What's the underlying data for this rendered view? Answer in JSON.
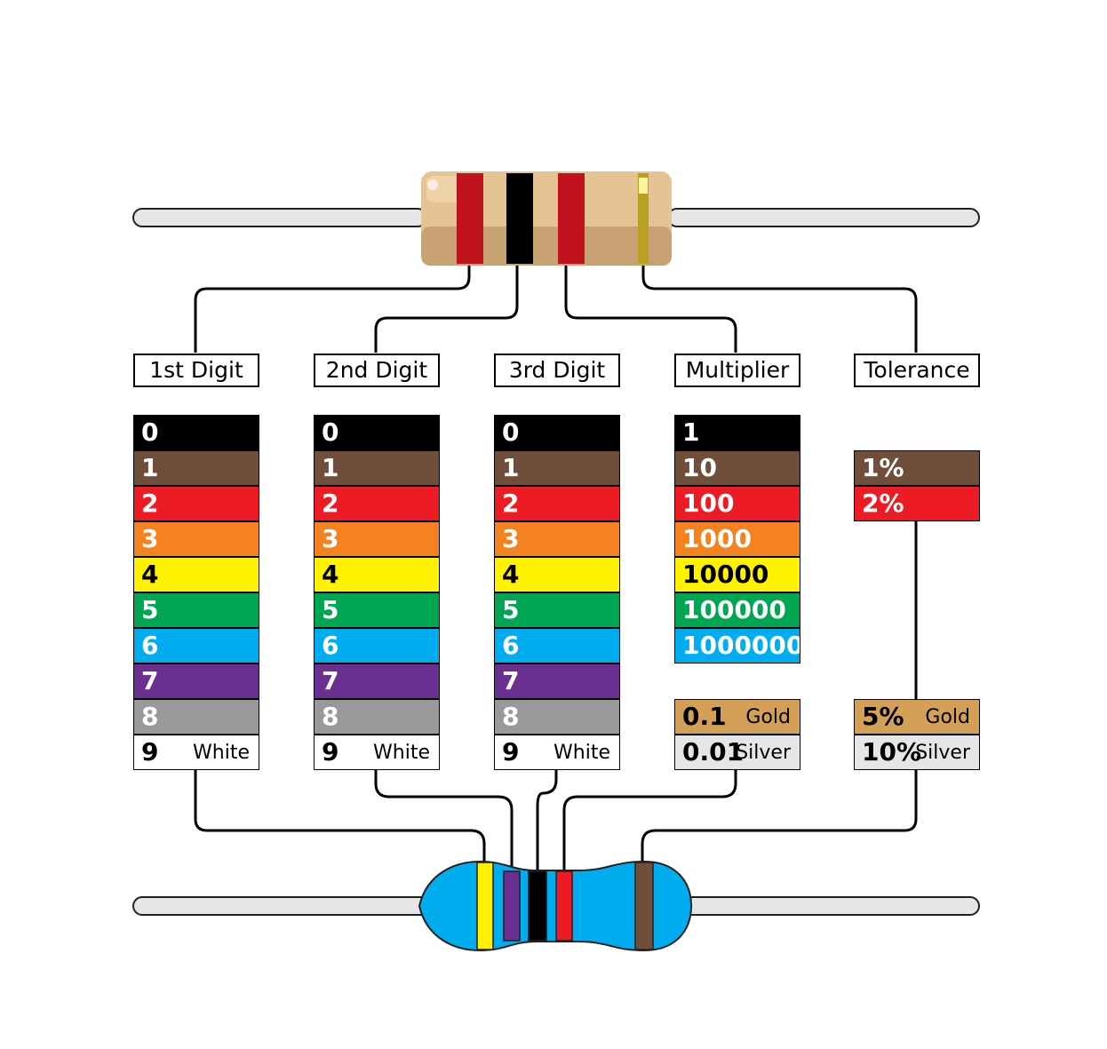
{
  "colors": {
    "black": "#000000",
    "brown": "#6f4f3a",
    "red": "#ed1c24",
    "orange": "#f58220",
    "yellow": "#fff200",
    "green": "#00a651",
    "blue": "#00aeef",
    "violet": "#6b2e91",
    "gray": "#999999",
    "white": "#ffffff",
    "gold": "#d4a057",
    "silver": "#e6e6e6",
    "body_top": "#e6c393",
    "body_light_blue": "#00aeef"
  },
  "columns": [
    {
      "header": "1st Digit",
      "rows": [
        {
          "value": "0",
          "color": "black",
          "text_color": "#ffffff"
        },
        {
          "value": "1",
          "color": "brown",
          "text_color": "#ffffff"
        },
        {
          "value": "2",
          "color": "red",
          "text_color": "#ffffff"
        },
        {
          "value": "3",
          "color": "orange",
          "text_color": "#ffffff"
        },
        {
          "value": "4",
          "color": "yellow",
          "text_color": "#000000"
        },
        {
          "value": "5",
          "color": "green",
          "text_color": "#ffffff"
        },
        {
          "value": "6",
          "color": "blue",
          "text_color": "#ffffff"
        },
        {
          "value": "7",
          "color": "violet",
          "text_color": "#ffffff"
        },
        {
          "value": "8",
          "color": "gray",
          "text_color": "#ffffff"
        },
        {
          "value": "9",
          "color": "white",
          "text_color": "#000000",
          "name": "White"
        }
      ]
    },
    {
      "header": "2nd Digit",
      "rows": [
        {
          "value": "0",
          "color": "black",
          "text_color": "#ffffff"
        },
        {
          "value": "1",
          "color": "brown",
          "text_color": "#ffffff"
        },
        {
          "value": "2",
          "color": "red",
          "text_color": "#ffffff"
        },
        {
          "value": "3",
          "color": "orange",
          "text_color": "#ffffff"
        },
        {
          "value": "4",
          "color": "yellow",
          "text_color": "#000000"
        },
        {
          "value": "5",
          "color": "green",
          "text_color": "#ffffff"
        },
        {
          "value": "6",
          "color": "blue",
          "text_color": "#ffffff"
        },
        {
          "value": "7",
          "color": "violet",
          "text_color": "#ffffff"
        },
        {
          "value": "8",
          "color": "gray",
          "text_color": "#ffffff"
        },
        {
          "value": "9",
          "color": "white",
          "text_color": "#000000",
          "name": "White"
        }
      ]
    },
    {
      "header": "3rd Digit",
      "rows": [
        {
          "value": "0",
          "color": "black",
          "text_color": "#ffffff"
        },
        {
          "value": "1",
          "color": "brown",
          "text_color": "#ffffff"
        },
        {
          "value": "2",
          "color": "red",
          "text_color": "#ffffff"
        },
        {
          "value": "3",
          "color": "orange",
          "text_color": "#ffffff"
        },
        {
          "value": "4",
          "color": "yellow",
          "text_color": "#000000"
        },
        {
          "value": "5",
          "color": "green",
          "text_color": "#ffffff"
        },
        {
          "value": "6",
          "color": "blue",
          "text_color": "#ffffff"
        },
        {
          "value": "7",
          "color": "violet",
          "text_color": "#ffffff"
        },
        {
          "value": "8",
          "color": "gray",
          "text_color": "#ffffff"
        },
        {
          "value": "9",
          "color": "white",
          "text_color": "#000000",
          "name": "White"
        }
      ]
    },
    {
      "header": "Multiplier",
      "rows": [
        {
          "value": "1",
          "color": "black",
          "text_color": "#ffffff"
        },
        {
          "value": "10",
          "color": "brown",
          "text_color": "#ffffff"
        },
        {
          "value": "100",
          "color": "red",
          "text_color": "#ffffff"
        },
        {
          "value": "1000",
          "color": "orange",
          "text_color": "#ffffff"
        },
        {
          "value": "10000",
          "color": "yellow",
          "text_color": "#000000"
        },
        {
          "value": "100000",
          "color": "green",
          "text_color": "#ffffff"
        },
        {
          "value": "1000000",
          "color": "blue",
          "text_color": "#ffffff"
        }
      ],
      "extra_rows": [
        {
          "value": "0.1",
          "color": "gold",
          "text_color": "#000000",
          "name": "Gold"
        },
        {
          "value": "0.01",
          "color": "silver",
          "text_color": "#000000",
          "name": "Silver"
        }
      ]
    },
    {
      "header": "Tolerance",
      "rows": [
        {
          "value": "1%",
          "color": "brown",
          "text_color": "#ffffff"
        },
        {
          "value": "2%",
          "color": "red",
          "text_color": "#ffffff"
        }
      ],
      "extra_rows": [
        {
          "value": "5%",
          "color": "gold",
          "text_color": "#000000",
          "name": "Gold"
        },
        {
          "value": "10%",
          "color": "silver",
          "text_color": "#000000",
          "name": "Silver"
        }
      ]
    }
  ],
  "top_resistor": {
    "bands": [
      "red",
      "black",
      "red",
      "gold"
    ]
  },
  "bottom_resistor": {
    "bands": [
      "yellow",
      "violet",
      "black",
      "red",
      "brown"
    ]
  }
}
